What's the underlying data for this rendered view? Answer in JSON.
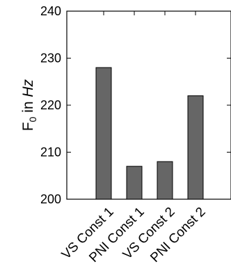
{
  "chart_data": {
    "type": "bar",
    "categories": [
      "VS Const 1",
      "PNI Const 1",
      "VS Const 2",
      "PNI Const 2"
    ],
    "values": [
      228,
      207,
      208,
      222
    ],
    "ylabel": {
      "base": "F",
      "subscript": "0",
      "middle": " in ",
      "unit": "Hz"
    },
    "ylim": [
      200,
      240
    ],
    "yticks": [
      200,
      210,
      220,
      230,
      240
    ],
    "bar_color": "#666666",
    "grid": false
  }
}
